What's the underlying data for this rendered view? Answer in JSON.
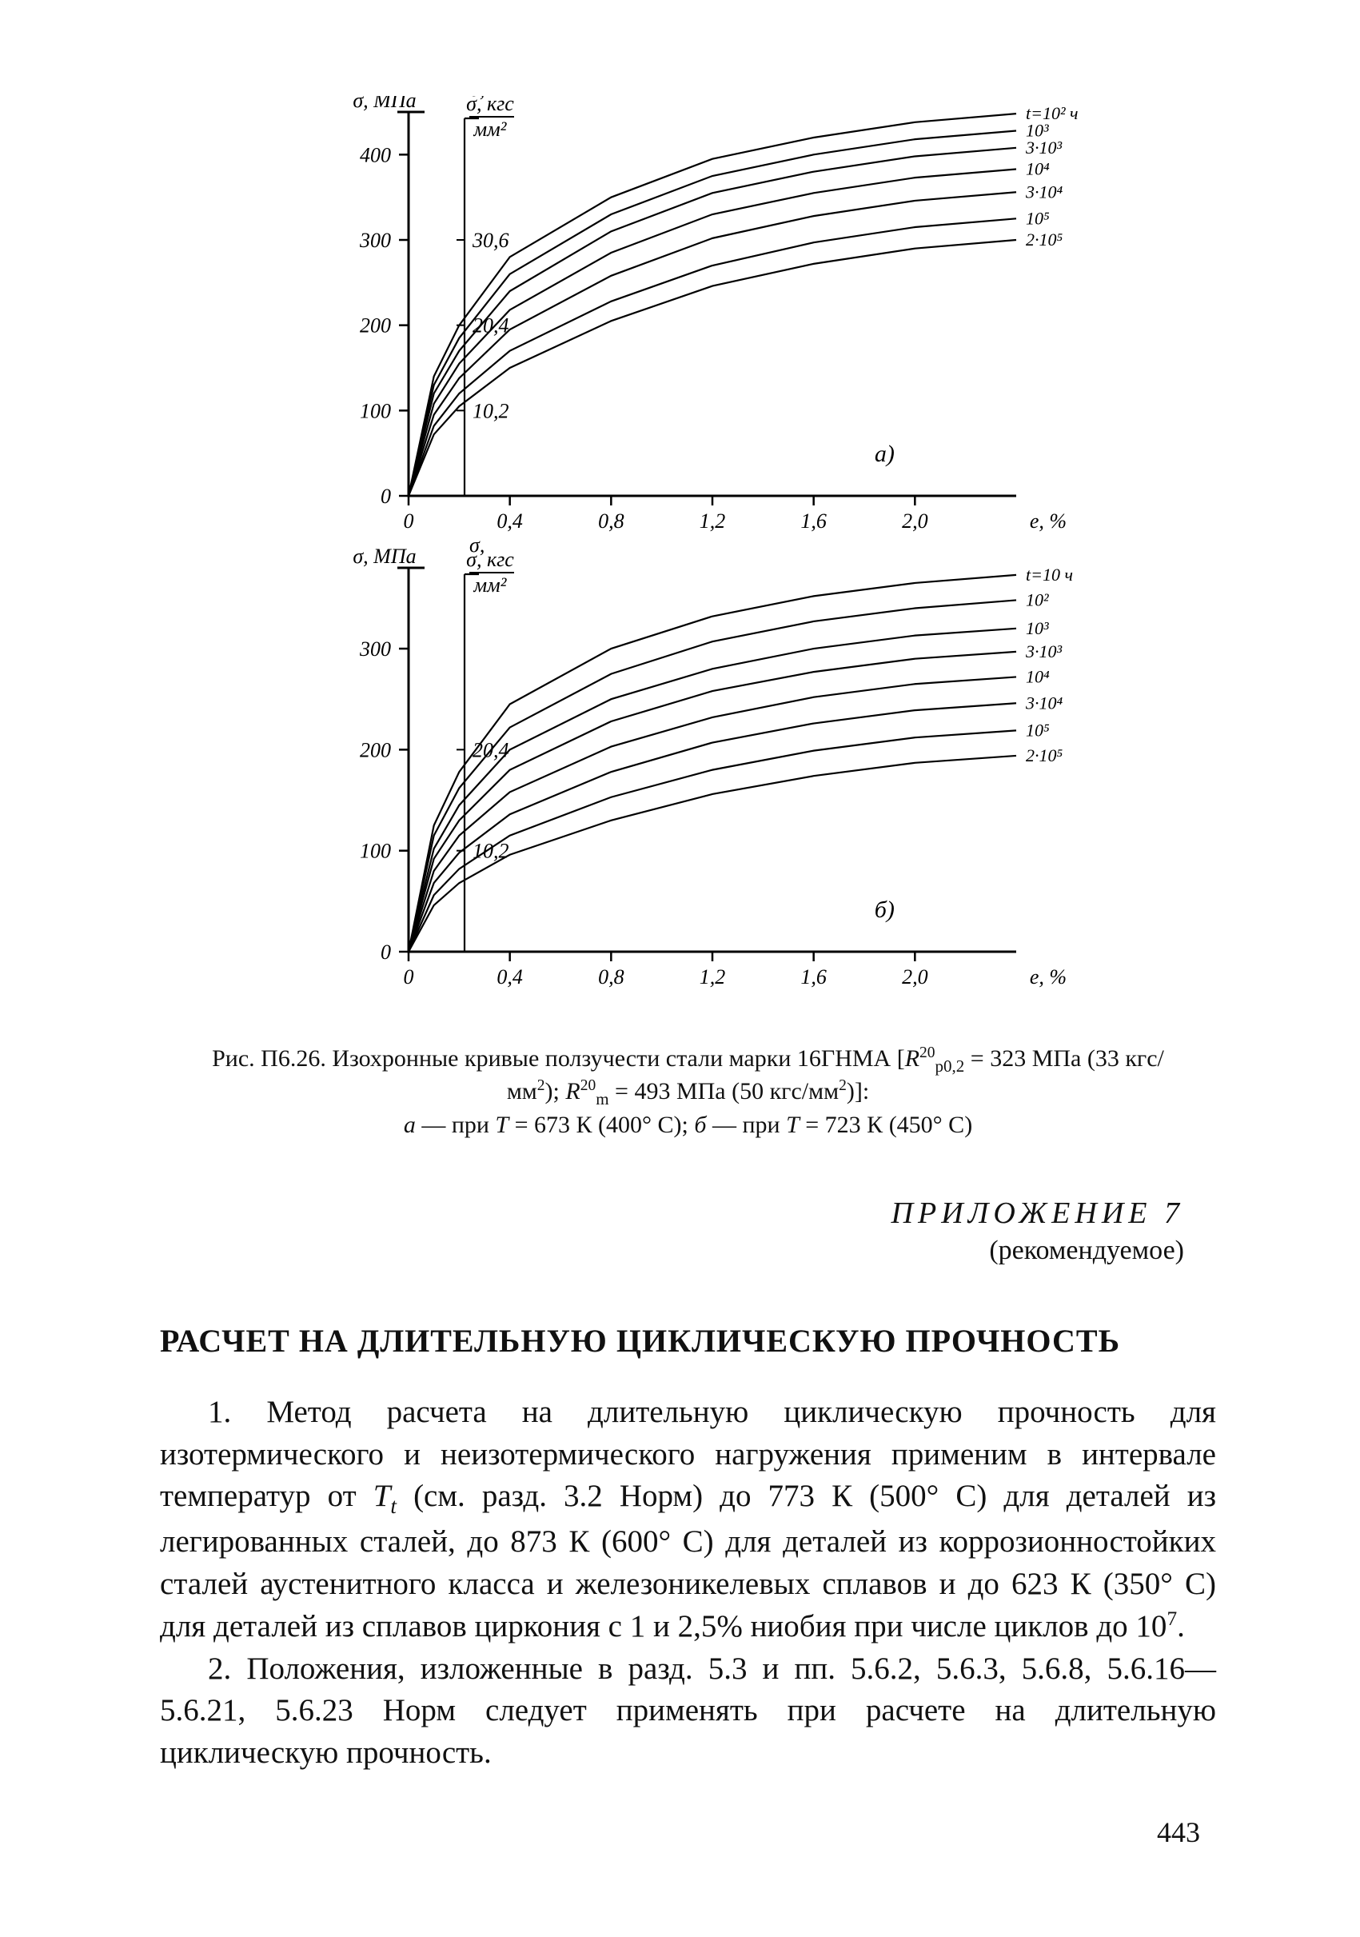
{
  "page_number": "443",
  "figure": {
    "label": "Рис. П6.26.",
    "caption_html": "Изохронные кривые ползучести стали марки 16ГНМА [<i>R</i><sup>20</sup><sub>p0,2</sub> = 323 МПа (33 кгс/мм<sup>2</sup>); <i>R</i><sup>20</sup><sub>m</sub> = 493 МПа (50 кгс/мм<sup>2</sup>)]:<br><i>a</i> — при <i>T</i> = 673 К (400° С); <i>б</i> — при <i>T</i> = 723 К (450° С)",
    "colors": {
      "background": "#ffffff",
      "axis": "#000000",
      "curve": "#000000",
      "text": "#000000"
    },
    "panels": [
      {
        "id": "a",
        "panel_label": "а)",
        "y1_label": "σ, МПа",
        "y2_label_top": "σ, кгс",
        "y2_label_bot": "мм²",
        "x_label": "e, %",
        "x_ticks": [
          "0",
          "0,4",
          "0,8",
          "1,2",
          "1,6",
          "2,0"
        ],
        "x_values": [
          0,
          0.4,
          0.8,
          1.2,
          1.6,
          2.0,
          2.4
        ],
        "y1_ticks": [
          "0",
          "100",
          "200",
          "300",
          "400"
        ],
        "y1_values": [
          0,
          100,
          200,
          300,
          400
        ],
        "y2_ticks": [
          "10,2",
          "20,4",
          "30,6"
        ],
        "y2_values": [
          100,
          200,
          300
        ],
        "ylim": [
          0,
          450
        ],
        "xlim": [
          0,
          2.4
        ],
        "curve_labels": [
          "t=10² ч",
          "10³",
          "3·10³",
          "10⁴",
          "3·10⁴",
          "10⁵",
          "2·10⁵"
        ],
        "curves": [
          [
            [
              0,
              0
            ],
            [
              0.1,
              140
            ],
            [
              0.2,
              200
            ],
            [
              0.4,
              280
            ],
            [
              0.8,
              350
            ],
            [
              1.2,
              395
            ],
            [
              1.6,
              420
            ],
            [
              2.0,
              438
            ],
            [
              2.4,
              448
            ]
          ],
          [
            [
              0,
              0
            ],
            [
              0.1,
              130
            ],
            [
              0.2,
              185
            ],
            [
              0.4,
              260
            ],
            [
              0.8,
              330
            ],
            [
              1.2,
              375
            ],
            [
              1.6,
              400
            ],
            [
              2.0,
              418
            ],
            [
              2.4,
              428
            ]
          ],
          [
            [
              0,
              0
            ],
            [
              0.1,
              120
            ],
            [
              0.2,
              170
            ],
            [
              0.4,
              240
            ],
            [
              0.8,
              310
            ],
            [
              1.2,
              355
            ],
            [
              1.6,
              380
            ],
            [
              2.0,
              398
            ],
            [
              2.4,
              408
            ]
          ],
          [
            [
              0,
              0
            ],
            [
              0.1,
              108
            ],
            [
              0.2,
              155
            ],
            [
              0.4,
              218
            ],
            [
              0.8,
              285
            ],
            [
              1.2,
              330
            ],
            [
              1.6,
              355
            ],
            [
              2.0,
              373
            ],
            [
              2.4,
              383
            ]
          ],
          [
            [
              0,
              0
            ],
            [
              0.1,
              95
            ],
            [
              0.2,
              138
            ],
            [
              0.4,
              195
            ],
            [
              0.8,
              258
            ],
            [
              1.2,
              302
            ],
            [
              1.6,
              328
            ],
            [
              2.0,
              346
            ],
            [
              2.4,
              356
            ]
          ],
          [
            [
              0,
              0
            ],
            [
              0.1,
              82
            ],
            [
              0.2,
              120
            ],
            [
              0.4,
              170
            ],
            [
              0.8,
              228
            ],
            [
              1.2,
              270
            ],
            [
              1.6,
              297
            ],
            [
              2.0,
              315
            ],
            [
              2.4,
              325
            ]
          ],
          [
            [
              0,
              0
            ],
            [
              0.1,
              72
            ],
            [
              0.2,
              105
            ],
            [
              0.4,
              150
            ],
            [
              0.8,
              205
            ],
            [
              1.2,
              246
            ],
            [
              1.6,
              272
            ],
            [
              2.0,
              290
            ],
            [
              2.4,
              300
            ]
          ]
        ]
      },
      {
        "id": "b",
        "panel_label": "б)",
        "y1_label": "σ, МПа",
        "y2_label_top": "σ, кгс",
        "y2_label_bot": "мм²",
        "x_label": "e, %",
        "x_ticks": [
          "0",
          "0,4",
          "0,8",
          "1,2",
          "1,6",
          "2,0"
        ],
        "x_values": [
          0,
          0.4,
          0.8,
          1.2,
          1.6,
          2.0,
          2.4
        ],
        "y1_ticks": [
          "0",
          "100",
          "200",
          "300"
        ],
        "y1_values": [
          0,
          100,
          200,
          300
        ],
        "y2_ticks": [
          "10,2",
          "20,4"
        ],
        "y2_values": [
          100,
          200
        ],
        "ylim": [
          0,
          380
        ],
        "xlim": [
          0,
          2.4
        ],
        "curve_labels": [
          "t=10 ч",
          "10²",
          "10³",
          "3·10³",
          "10⁴",
          "3·10⁴",
          "10⁵",
          "2·10⁵"
        ],
        "curves": [
          [
            [
              0,
              0
            ],
            [
              0.1,
              125
            ],
            [
              0.2,
              178
            ],
            [
              0.4,
              245
            ],
            [
              0.8,
              300
            ],
            [
              1.2,
              332
            ],
            [
              1.6,
              352
            ],
            [
              2.0,
              365
            ],
            [
              2.4,
              373
            ]
          ],
          [
            [
              0,
              0
            ],
            [
              0.1,
              115
            ],
            [
              0.2,
              162
            ],
            [
              0.4,
              222
            ],
            [
              0.8,
              275
            ],
            [
              1.2,
              307
            ],
            [
              1.6,
              327
            ],
            [
              2.0,
              340
            ],
            [
              2.4,
              348
            ]
          ],
          [
            [
              0,
              0
            ],
            [
              0.1,
              102
            ],
            [
              0.2,
              145
            ],
            [
              0.4,
              200
            ],
            [
              0.8,
              250
            ],
            [
              1.2,
              280
            ],
            [
              1.6,
              300
            ],
            [
              2.0,
              313
            ],
            [
              2.4,
              320
            ]
          ],
          [
            [
              0,
              0
            ],
            [
              0.1,
              92
            ],
            [
              0.2,
              130
            ],
            [
              0.4,
              180
            ],
            [
              0.8,
              228
            ],
            [
              1.2,
              258
            ],
            [
              1.6,
              277
            ],
            [
              2.0,
              290
            ],
            [
              2.4,
              297
            ]
          ],
          [
            [
              0,
              0
            ],
            [
              0.1,
              80
            ],
            [
              0.2,
              115
            ],
            [
              0.4,
              158
            ],
            [
              0.8,
              203
            ],
            [
              1.2,
              232
            ],
            [
              1.6,
              252
            ],
            [
              2.0,
              265
            ],
            [
              2.4,
              272
            ]
          ],
          [
            [
              0,
              0
            ],
            [
              0.1,
              68
            ],
            [
              0.2,
              98
            ],
            [
              0.4,
              136
            ],
            [
              0.8,
              178
            ],
            [
              1.2,
              207
            ],
            [
              1.6,
              226
            ],
            [
              2.0,
              239
            ],
            [
              2.4,
              246
            ]
          ],
          [
            [
              0,
              0
            ],
            [
              0.1,
              56
            ],
            [
              0.2,
              82
            ],
            [
              0.4,
              115
            ],
            [
              0.8,
              153
            ],
            [
              1.2,
              180
            ],
            [
              1.6,
              199
            ],
            [
              2.0,
              212
            ],
            [
              2.4,
              219
            ]
          ],
          [
            [
              0,
              0
            ],
            [
              0.1,
              46
            ],
            [
              0.2,
              68
            ],
            [
              0.4,
              96
            ],
            [
              0.8,
              130
            ],
            [
              1.2,
              156
            ],
            [
              1.6,
              174
            ],
            [
              2.0,
              187
            ],
            [
              2.4,
              194
            ]
          ]
        ]
      }
    ],
    "line_width": 2.2,
    "tick_fontsize": 26,
    "label_fontsize": 26
  },
  "appendix": {
    "title": "ПРИЛОЖЕНИЕ 7",
    "subtitle": "(рекомендуемое)"
  },
  "section_title": "РАСЧЕТ НА ДЛИТЕЛЬНУЮ ЦИКЛИЧЕСКУЮ ПРОЧНОСТЬ",
  "paragraphs": [
    "1. Метод расчета на длительную циклическую прочность для изотермического и неизотермического нагружения применим в интервале температур от <i>T<sub>t</sub></i> (см. разд. 3.2 Норм) до 773 К (500° С) для деталей из легированных сталей, до 873 К (600° С) для деталей из коррозионностойких сталей аустенитного класса и железоникелевых сплавов и до 623 К (350° С) для деталей из сплавов циркония с 1 и 2,5% ниобия при числе циклов до 10<sup>7</sup>.",
    "2. Положения, изложенные в разд. 5.3 и пп. 5.6.2, 5.6.3, 5.6.8, 5.6.16—5.6.21, 5.6.23 Норм следует применять при расчете на длительную циклическую прочность."
  ]
}
